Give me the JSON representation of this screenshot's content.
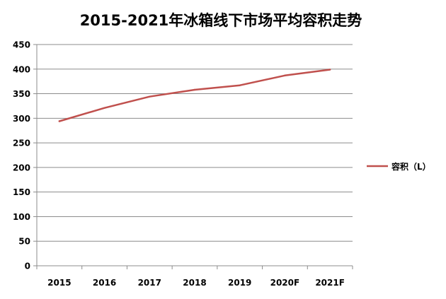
{
  "chart_data": {
    "type": "line",
    "title": "2015-2021年冰箱线下市场平均容积走势",
    "categories": [
      "2015",
      "2016",
      "2017",
      "2018",
      "2019",
      "2020F",
      "2021F"
    ],
    "series": [
      {
        "name": "容积（L）",
        "values": [
          294,
          321,
          344,
          358,
          367,
          387,
          399
        ],
        "color": "#c0504d"
      }
    ],
    "yticks": [
      0,
      50,
      100,
      150,
      200,
      250,
      300,
      350,
      400,
      450
    ],
    "ylim": [
      0,
      450
    ],
    "grid": true,
    "legend": "right"
  }
}
